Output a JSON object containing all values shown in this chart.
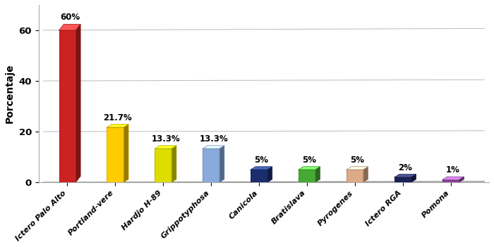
{
  "categories": [
    "Ictero Palo Alto",
    "Portland-vere",
    "Hardjo H-89",
    "Grippotyphosa",
    "Canicola",
    "Bratislava",
    "Pyrogenes",
    "Ictero RGA",
    "Pomona"
  ],
  "values": [
    60,
    21.7,
    13.3,
    13.3,
    5,
    5,
    5,
    2,
    1
  ],
  "labels": [
    "60%",
    "21.7%",
    "13.3%",
    "13.3%",
    "5%",
    "5%",
    "5%",
    "2%",
    "1%"
  ],
  "bar_colors": [
    "#cc2222",
    "#ffcc00",
    "#dddd00",
    "#88aadd",
    "#1a2e6e",
    "#44aa33",
    "#ddaa88",
    "#1a2255",
    "#884499"
  ],
  "ylabel": "Porcentaje",
  "ylim": [
    0,
    70
  ],
  "yticks": [
    0,
    20,
    40,
    60
  ],
  "background_color": "#ffffff",
  "grid_color": "#bbbbbb",
  "label_fontsize": 8.5,
  "ylabel_fontsize": 10,
  "tick_label_fontsize": 8
}
